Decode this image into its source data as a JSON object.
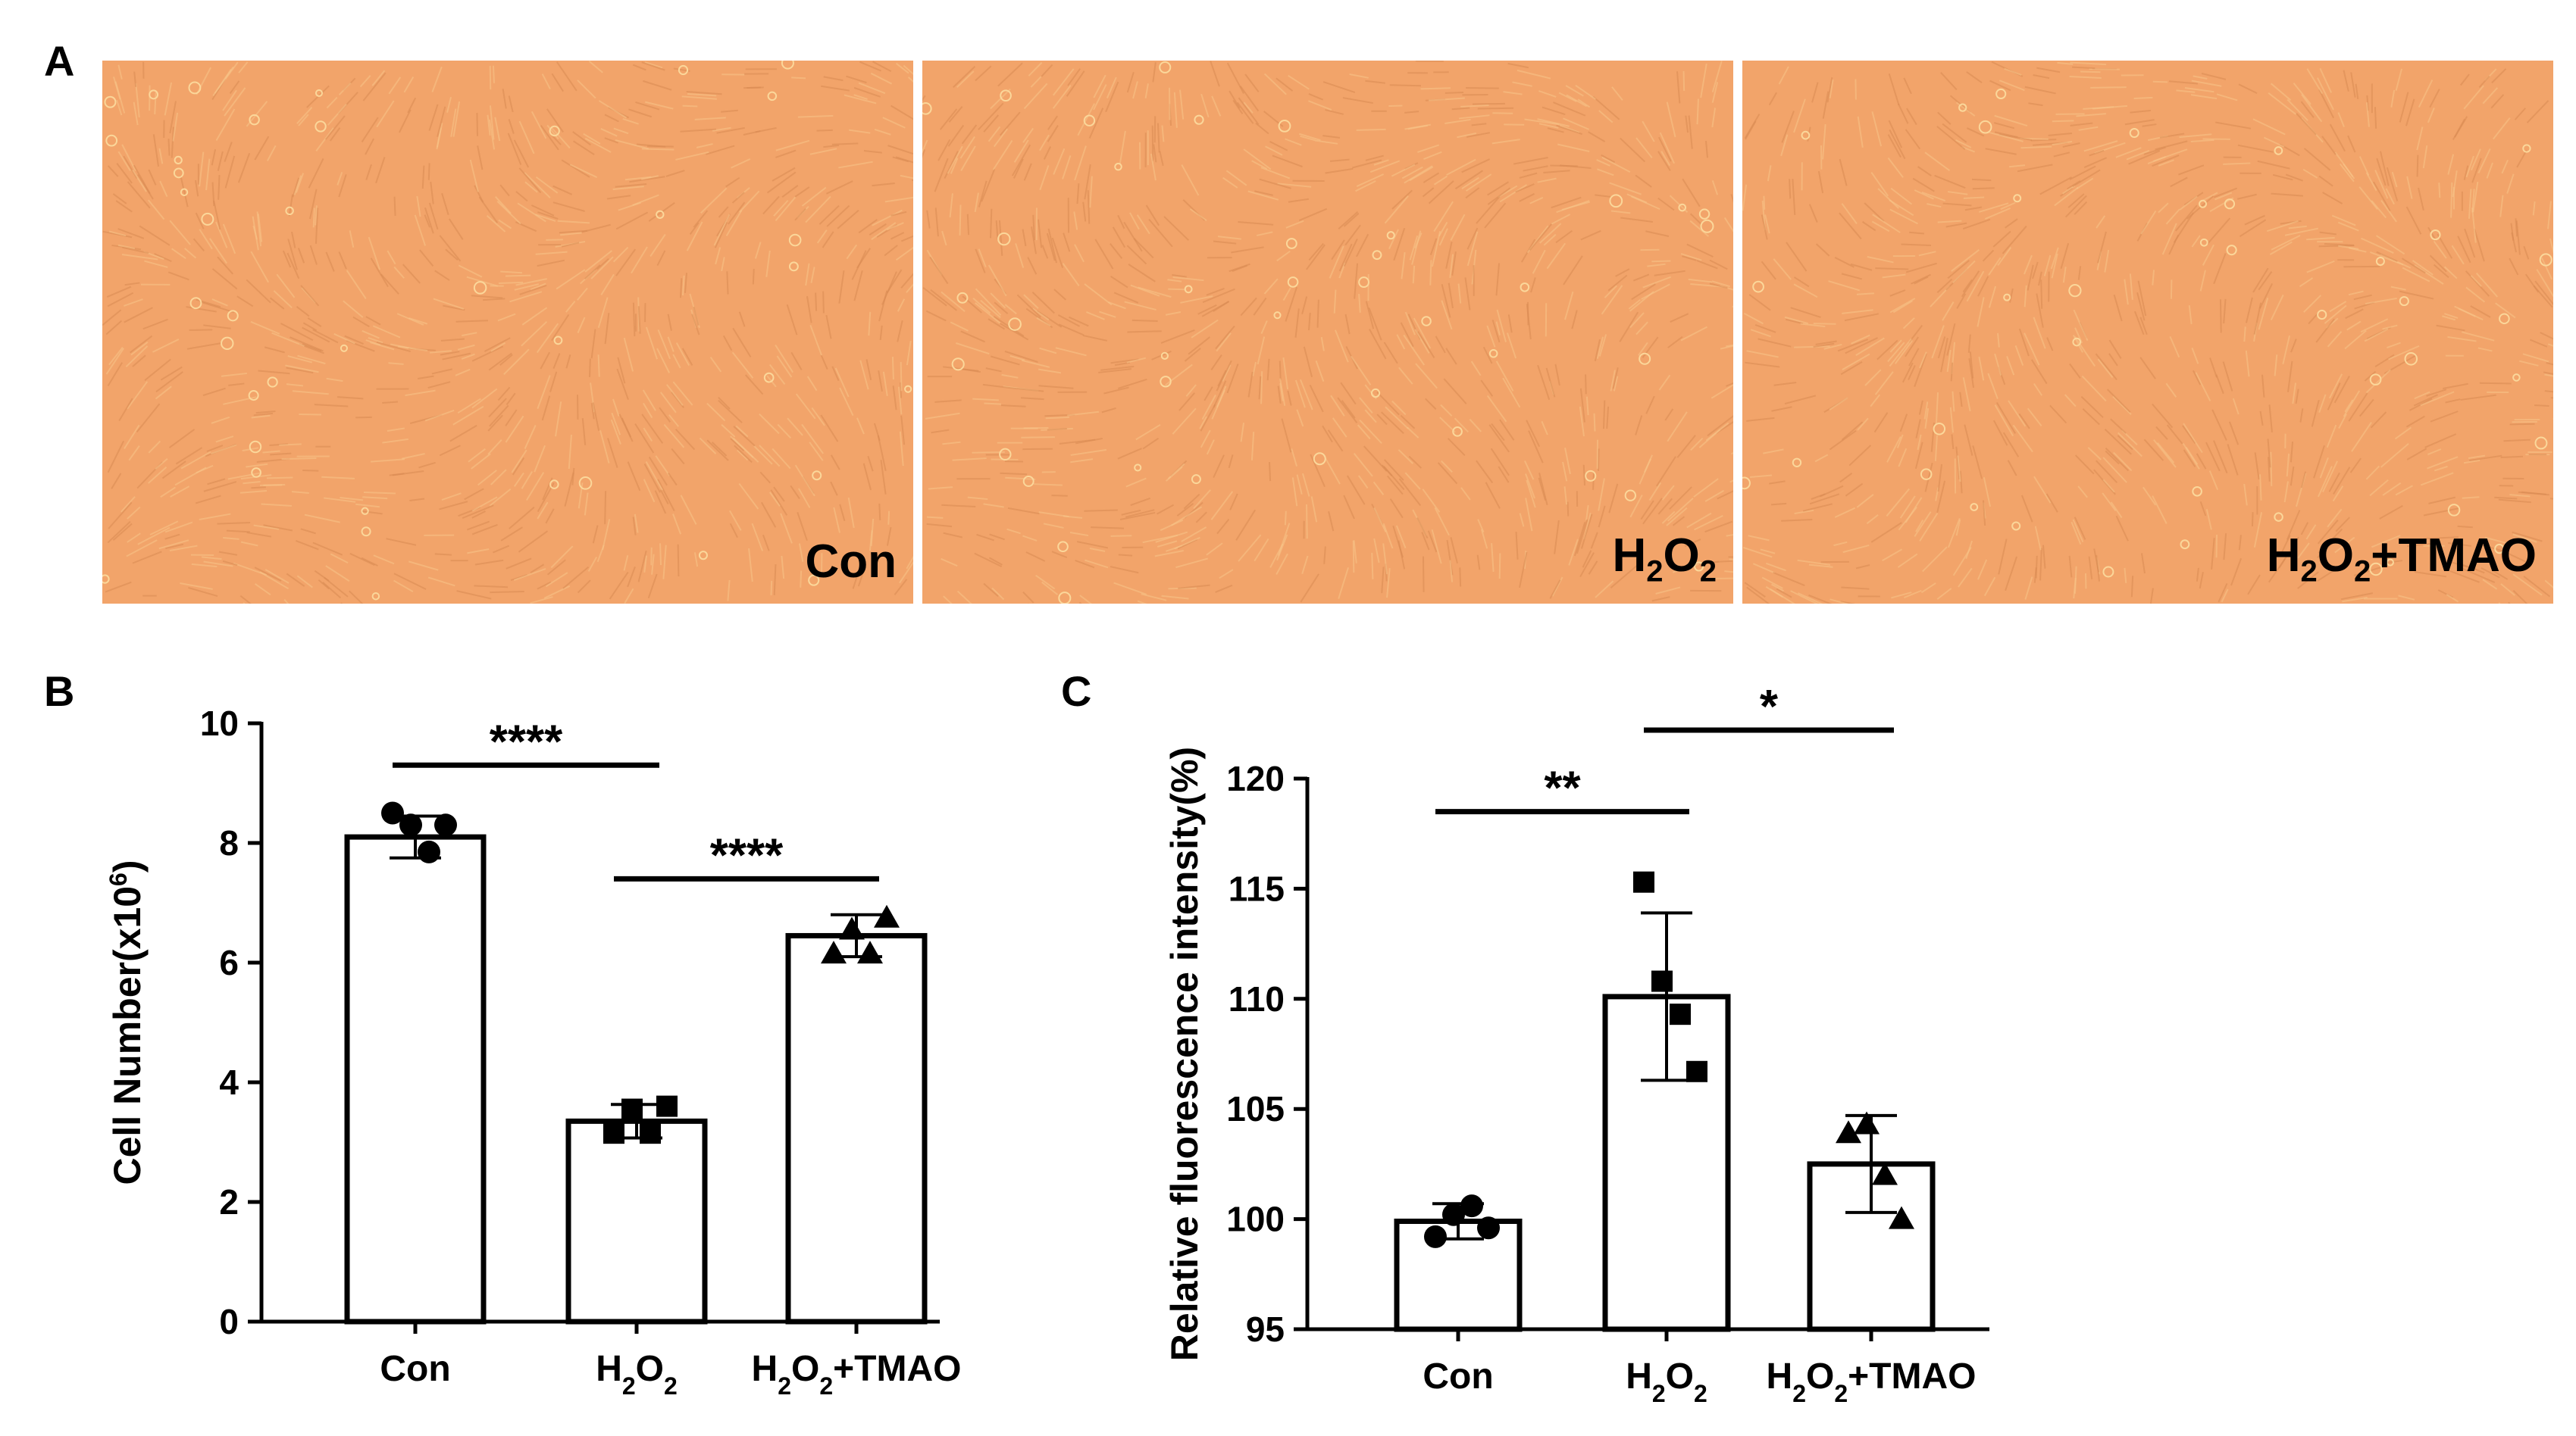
{
  "panel_labels": {
    "a": "A",
    "b": "B",
    "c": "C"
  },
  "micrographs": [
    {
      "label": "Con",
      "sub": "",
      "label2": "",
      "sub2": "",
      "label3": ""
    },
    {
      "label": "H",
      "sub": "2",
      "label2": "O",
      "sub2": "2",
      "label3": ""
    },
    {
      "label": "H",
      "sub": "2",
      "label2": "O",
      "sub2": "2",
      "label3": "+TMAO"
    }
  ],
  "colors": {
    "micro_base": "#F2A46A",
    "micro_light": "#F7C489",
    "micro_dark": "#D98A52",
    "bar_fill": "#ffffff",
    "ink": "#000000"
  },
  "chart_data": [
    {
      "type": "bar",
      "ylabel": "Cell Number(x10",
      "ylabel_sup": "6",
      "ylabel_tail": ")",
      "ylim": [
        0,
        10
      ],
      "yticks": [
        0,
        2,
        4,
        6,
        8,
        10
      ],
      "categories": [
        {
          "main": "Con",
          "sub": "",
          "main2": "",
          "sub2": "",
          "tail": ""
        },
        {
          "main": "H",
          "sub": "2",
          "main2": "O",
          "sub2": "2",
          "tail": ""
        },
        {
          "main": "H",
          "sub": "2",
          "main2": "O",
          "sub2": "2",
          "tail": "+TMAO"
        }
      ],
      "values": [
        8.1,
        3.35,
        6.45
      ],
      "sd": [
        0.35,
        0.28,
        0.35
      ],
      "points": [
        [
          8.5,
          8.3,
          7.85,
          8.3
        ],
        [
          3.15,
          3.55,
          3.15,
          3.6
        ],
        [
          6.15,
          6.55,
          6.15,
          6.75
        ]
      ],
      "markers": [
        "circle",
        "square",
        "triangle"
      ],
      "significance": [
        {
          "from": 0,
          "to": 1,
          "y": 9.3,
          "label": "****"
        },
        {
          "from": 1,
          "to": 2,
          "y": 7.4,
          "label": "****"
        }
      ]
    },
    {
      "type": "bar",
      "ylabel": "Relative fluorescence intensity(%)",
      "ylabel_sup": "",
      "ylabel_tail": "",
      "ylim": [
        95,
        120
      ],
      "yticks": [
        95,
        100,
        105,
        110,
        115,
        120
      ],
      "categories": [
        {
          "main": "Con",
          "sub": "",
          "main2": "",
          "sub2": "",
          "tail": ""
        },
        {
          "main": "H",
          "sub": "2",
          "main2": "O",
          "sub2": "2",
          "tail": ""
        },
        {
          "main": "H",
          "sub": "2",
          "main2": "O",
          "sub2": "2",
          "tail": "+TMAO"
        }
      ],
      "values": [
        99.9,
        110.1,
        102.5
      ],
      "sd": [
        0.8,
        3.8,
        2.2
      ],
      "points": [
        [
          99.2,
          100.2,
          100.6,
          99.6
        ],
        [
          115.3,
          110.8,
          109.3,
          106.7
        ],
        [
          103.9,
          104.3,
          102.0,
          100.0
        ]
      ],
      "markers": [
        "circle",
        "square",
        "triangle"
      ],
      "significance": [
        {
          "from": 0,
          "to": 1,
          "y": 118.5,
          "label": "**"
        },
        {
          "from": 1,
          "to": 2,
          "y": 122.2,
          "label": "*"
        }
      ]
    }
  ]
}
